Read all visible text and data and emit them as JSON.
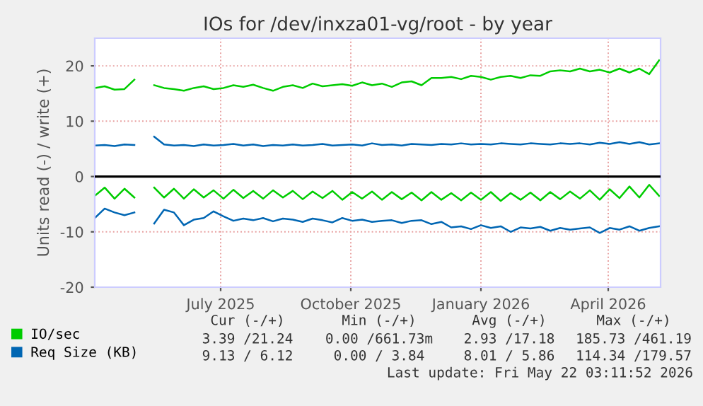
{
  "chart_data": {
    "type": "line",
    "title": "IOs for /dev/inxza01-vg/root - by year",
    "ylabel": "Units read (-) / write (+)",
    "x": [
      "2025-04-17",
      "2025-04-24",
      "2025-05-01",
      "2025-05-08",
      "2025-05-15",
      "2025-05-22",
      "2025-05-29",
      "2025-06-05",
      "2025-06-12",
      "2025-06-19",
      "2025-06-26",
      "2025-07-03",
      "2025-07-10",
      "2025-07-17",
      "2025-07-24",
      "2025-07-31",
      "2025-08-07",
      "2025-08-14",
      "2025-08-21",
      "2025-08-28",
      "2025-09-04",
      "2025-09-11",
      "2025-09-18",
      "2025-09-25",
      "2025-10-02",
      "2025-10-09",
      "2025-10-16",
      "2025-10-23",
      "2025-10-30",
      "2025-11-06",
      "2025-11-13",
      "2025-11-20",
      "2025-11-27",
      "2025-12-04",
      "2025-12-11",
      "2025-12-18",
      "2025-12-25",
      "2026-01-01",
      "2026-01-08",
      "2026-01-15",
      "2026-01-22",
      "2026-01-29",
      "2026-02-05",
      "2026-02-12",
      "2026-02-19",
      "2026-02-26",
      "2026-03-05",
      "2026-03-12",
      "2026-03-19",
      "2026-03-26",
      "2026-04-02",
      "2026-04-09",
      "2026-04-16",
      "2026-04-23",
      "2026-04-30",
      "2026-05-07",
      "2026-05-14",
      "2026-05-21"
    ],
    "series": [
      {
        "name": "IO/sec",
        "color": "#00cc00",
        "values": [
          16,
          16.3,
          15.7,
          15.8,
          17.5,
          null,
          16.5,
          16,
          15.8,
          15.5,
          16,
          16.3,
          15.8,
          16,
          16.5,
          16.2,
          16.6,
          16,
          15.5,
          16.2,
          16.5,
          16,
          16.8,
          16.3,
          16.5,
          16.7,
          16.4,
          17,
          16.5,
          16.8,
          16.2,
          17,
          17.2,
          16.5,
          17.8,
          17.8,
          18,
          17.6,
          18.2,
          18,
          17.5,
          18,
          18.2,
          17.8,
          18.3,
          18.2,
          19,
          19.2,
          19,
          19.5,
          19,
          19.3,
          18.8,
          19.5,
          18.8,
          19.5,
          18.5,
          21
        ]
      },
      {
        "color": "#00cc00",
        "values": [
          -3.5,
          -2,
          -4,
          -2.2,
          -3.8,
          null,
          -2,
          -3.8,
          -2.2,
          -4,
          -2.3,
          -3.8,
          -2.5,
          -4,
          -2.4,
          -3.9,
          -2.6,
          -4,
          -2.5,
          -3.8,
          -2.6,
          -4.1,
          -2.7,
          -3.9,
          -2.6,
          -4.2,
          -2.8,
          -4,
          -2.7,
          -4.2,
          -2.8,
          -4.1,
          -2.9,
          -4.3,
          -2.8,
          -4.2,
          -3,
          -4.3,
          -2.9,
          -4.2,
          -2.8,
          -4.4,
          -3,
          -4.2,
          -2.9,
          -4.3,
          -2.8,
          -4.1,
          -2.7,
          -4,
          -2.5,
          -4.2,
          -2.3,
          -3.9,
          -1.8,
          -3.8,
          -1.5,
          -3.5
        ]
      },
      {
        "name": "Req Size (KB)",
        "color": "#0066b3",
        "values": [
          5.6,
          5.7,
          5.5,
          5.8,
          5.7,
          null,
          7.2,
          5.8,
          5.6,
          5.7,
          5.5,
          5.8,
          5.6,
          5.7,
          5.9,
          5.6,
          5.8,
          5.5,
          5.7,
          5.6,
          5.8,
          5.6,
          5.7,
          5.9,
          5.6,
          5.7,
          5.8,
          5.6,
          6,
          5.7,
          5.8,
          5.6,
          5.9,
          5.8,
          5.7,
          5.9,
          5.8,
          6,
          5.8,
          5.9,
          5.8,
          6,
          5.9,
          5.8,
          6,
          5.9,
          5.8,
          6,
          5.9,
          6,
          5.8,
          6.1,
          5.9,
          6.2,
          5.9,
          6.2,
          5.8,
          6
        ]
      },
      {
        "color": "#0066b3",
        "values": [
          -7.5,
          -5.8,
          -6.5,
          -7,
          -6.5,
          null,
          -8.5,
          -6,
          -6.5,
          -8.8,
          -7.8,
          -7.5,
          -6.3,
          -7.2,
          -8,
          -7.6,
          -7.9,
          -7.5,
          -8.1,
          -7.6,
          -7.8,
          -8.2,
          -7.6,
          -7.9,
          -8.3,
          -7.5,
          -8,
          -7.8,
          -8.2,
          -8,
          -7.9,
          -8.4,
          -8,
          -7.9,
          -8.6,
          -8.2,
          -9.2,
          -9,
          -9.5,
          -8.8,
          -9.3,
          -9,
          -10,
          -9.2,
          -9.4,
          -9.1,
          -9.8,
          -9.3,
          -9.6,
          -9.4,
          -9.2,
          -10.2,
          -9.3,
          -9.6,
          -9,
          -9.8,
          -9.3,
          -9
        ]
      }
    ],
    "xlim": [
      "2025-04-17",
      "2026-05-22"
    ],
    "xticks": [
      {
        "value": "2025-07-15",
        "label": "July 2025"
      },
      {
        "value": "2025-10-15",
        "label": "October 2025"
      },
      {
        "value": "2026-01-15",
        "label": "January 2026"
      },
      {
        "value": "2026-04-15",
        "label": "April 2026"
      }
    ],
    "ylim": [
      -20,
      25
    ],
    "yticks": [
      -20,
      -10,
      0,
      10,
      20
    ],
    "ref_lines": [
      {
        "axis": "y",
        "value": 0,
        "color": "#000000"
      }
    ],
    "grid": true,
    "legend": "bottom left",
    "marker": "none",
    "line_style": "solid",
    "annotations": [
      "Cur (-/+)",
      "Min (-/+)",
      "Avg (-/+)",
      "Max (-/+)",
      "3.39 /21.24",
      "0.00 /661.73m",
      "2.93 /17.18",
      "185.73 /461.19",
      "9.13 / 6.12",
      "0.00 / 3.84",
      "8.01 / 5.86",
      "114.34 /179.57",
      "Last update: Fri May 22 03:11:52 2026"
    ]
  }
}
